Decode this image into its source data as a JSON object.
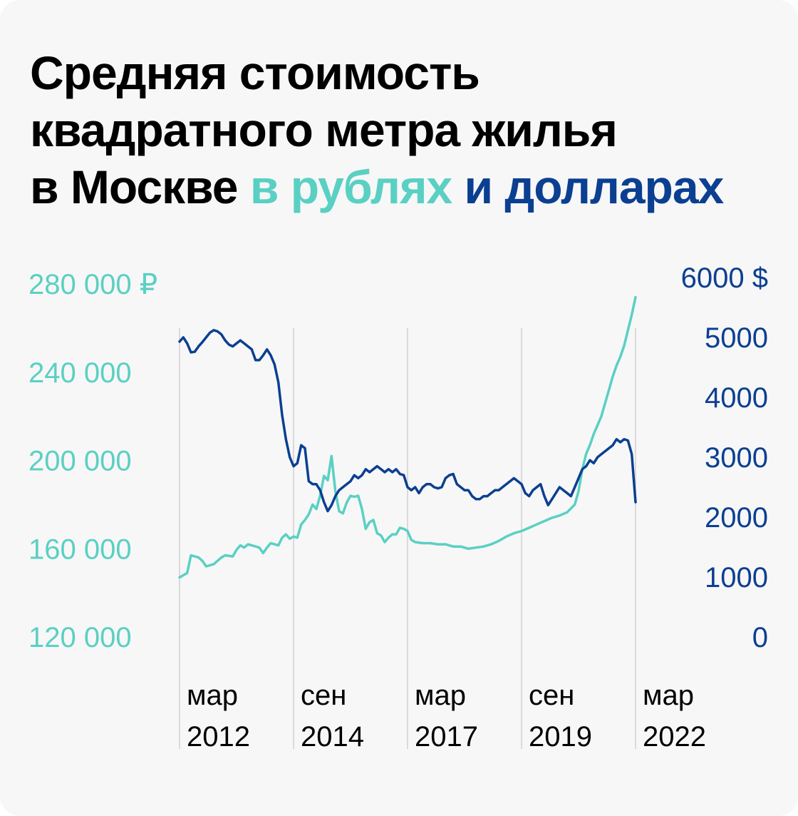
{
  "title": {
    "line1": "Средняя стоимость",
    "line2": "квадратного метра жилья",
    "line3_prefix": "в Москве",
    "rub_word": "в рублях",
    "usd_word": "и долларах"
  },
  "colors": {
    "rub": "#5ad0c3",
    "usd": "#0b3f91",
    "grid": "#d0d0d0",
    "background": "#f7f7f7"
  },
  "chart_data": {
    "type": "line",
    "x_range": [
      "2012-03",
      "2022-03"
    ],
    "x_ticks": [
      {
        "line1": "мар",
        "line2": "2012",
        "date": "2012-03"
      },
      {
        "line1": "сен",
        "line2": "2014",
        "date": "2014-09"
      },
      {
        "line1": "мар",
        "line2": "2017",
        "date": "2017-03"
      },
      {
        "line1": "сен",
        "line2": "2019",
        "date": "2019-09"
      },
      {
        "line1": "мар",
        "line2": "2022",
        "date": "2022-03"
      }
    ],
    "y_left": {
      "range": [
        120000,
        280000
      ],
      "ticks": [
        {
          "value": 280000,
          "label": "280 000 ₽"
        },
        {
          "value": 240000,
          "label": "240 000"
        },
        {
          "value": 200000,
          "label": "200 000"
        },
        {
          "value": 160000,
          "label": "160 000"
        },
        {
          "value": 120000,
          "label": "120 000"
        }
      ]
    },
    "y_right": {
      "range": [
        0,
        6000
      ],
      "ticks": [
        {
          "value": 6000,
          "label": "6000 $"
        },
        {
          "value": 5000,
          "label": "5000"
        },
        {
          "value": 4000,
          "label": "4000"
        },
        {
          "value": 3000,
          "label": "3000"
        },
        {
          "value": 2000,
          "label": "2000"
        },
        {
          "value": 1000,
          "label": "1000"
        },
        {
          "value": 0,
          "label": "0"
        }
      ]
    },
    "series": [
      {
        "axis": "left",
        "color": "#5ad0c3",
        "points": [
          [
            "2012-03",
            147000
          ],
          [
            "2012-05",
            149000
          ],
          [
            "2012-06",
            157000
          ],
          [
            "2012-08",
            156000
          ],
          [
            "2012-09",
            154500
          ],
          [
            "2012-10",
            152000
          ],
          [
            "2012-12",
            153000
          ],
          [
            "2013-02",
            156000
          ],
          [
            "2013-03",
            157000
          ],
          [
            "2013-05",
            156500
          ],
          [
            "2013-06",
            159500
          ],
          [
            "2013-07",
            161500
          ],
          [
            "2013-08",
            160500
          ],
          [
            "2013-09",
            162000
          ],
          [
            "2013-10",
            161500
          ],
          [
            "2013-12",
            160500
          ],
          [
            "2014-01",
            158000
          ],
          [
            "2014-02",
            160500
          ],
          [
            "2014-03",
            162500
          ],
          [
            "2014-05",
            161500
          ],
          [
            "2014-06",
            165000
          ],
          [
            "2014-07",
            166500
          ],
          [
            "2014-08",
            164500
          ],
          [
            "2014-09",
            165500
          ],
          [
            "2014-10",
            165000
          ],
          [
            "2014-11",
            171000
          ],
          [
            "2014-12",
            173000
          ],
          [
            "2015-01",
            175500
          ],
          [
            "2015-02",
            180000
          ],
          [
            "2015-03",
            178000
          ],
          [
            "2015-04",
            184000
          ],
          [
            "2015-05",
            193000
          ],
          [
            "2015-06",
            191000
          ],
          [
            "2015-07",
            202000
          ],
          [
            "2015-08",
            186000
          ],
          [
            "2015-09",
            177000
          ],
          [
            "2015-10",
            176000
          ],
          [
            "2015-11",
            181000
          ],
          [
            "2015-12",
            184000
          ],
          [
            "2016-01",
            183500
          ],
          [
            "2016-02",
            184000
          ],
          [
            "2016-03",
            178000
          ],
          [
            "2016-04",
            169000
          ],
          [
            "2016-05",
            172000
          ],
          [
            "2016-06",
            173000
          ],
          [
            "2016-07",
            167000
          ],
          [
            "2016-08",
            166000
          ],
          [
            "2016-09",
            163000
          ],
          [
            "2016-10",
            165000
          ],
          [
            "2016-11",
            166500
          ],
          [
            "2016-12",
            166500
          ],
          [
            "2017-01",
            169500
          ],
          [
            "2017-02",
            169000
          ],
          [
            "2017-03",
            168000
          ],
          [
            "2017-04",
            164000
          ],
          [
            "2017-05",
            163000
          ],
          [
            "2017-07",
            162500
          ],
          [
            "2017-09",
            162500
          ],
          [
            "2017-11",
            162000
          ],
          [
            "2018-01",
            162000
          ],
          [
            "2018-03",
            161000
          ],
          [
            "2018-05",
            161000
          ],
          [
            "2018-07",
            160000
          ],
          [
            "2018-09",
            160500
          ],
          [
            "2018-11",
            161000
          ],
          [
            "2019-01",
            162000
          ],
          [
            "2019-03",
            163500
          ],
          [
            "2019-05",
            165500
          ],
          [
            "2019-07",
            167000
          ],
          [
            "2019-09",
            168000
          ],
          [
            "2019-11",
            169500
          ],
          [
            "2020-01",
            171000
          ],
          [
            "2020-03",
            172500
          ],
          [
            "2020-05",
            174000
          ],
          [
            "2020-07",
            175000
          ],
          [
            "2020-09",
            176500
          ],
          [
            "2020-11",
            180000
          ],
          [
            "2020-12",
            186000
          ],
          [
            "2021-01",
            196000
          ],
          [
            "2021-02",
            203000
          ],
          [
            "2021-03",
            207000
          ],
          [
            "2021-04",
            212000
          ],
          [
            "2021-05",
            216000
          ],
          [
            "2021-06",
            220000
          ],
          [
            "2021-07",
            226000
          ],
          [
            "2021-08",
            232000
          ],
          [
            "2021-09",
            238000
          ],
          [
            "2021-10",
            243000
          ],
          [
            "2021-11",
            247000
          ],
          [
            "2021-12",
            252000
          ],
          [
            "2022-01",
            259000
          ],
          [
            "2022-02",
            266000
          ],
          [
            "2022-03",
            274000
          ]
        ]
      },
      {
        "axis": "right",
        "color": "#0b3f91",
        "points": [
          [
            "2012-03",
            4930
          ],
          [
            "2012-04",
            5000
          ],
          [
            "2012-05",
            4900
          ],
          [
            "2012-06",
            4750
          ],
          [
            "2012-07",
            4760
          ],
          [
            "2012-08",
            4850
          ],
          [
            "2012-09",
            4920
          ],
          [
            "2012-10",
            5000
          ],
          [
            "2012-11",
            5080
          ],
          [
            "2012-12",
            5120
          ],
          [
            "2013-01",
            5100
          ],
          [
            "2013-02",
            5050
          ],
          [
            "2013-03",
            4950
          ],
          [
            "2013-04",
            4880
          ],
          [
            "2013-05",
            4850
          ],
          [
            "2013-06",
            4900
          ],
          [
            "2013-07",
            4950
          ],
          [
            "2013-08",
            4900
          ],
          [
            "2013-09",
            4850
          ],
          [
            "2013-10",
            4800
          ],
          [
            "2013-11",
            4620
          ],
          [
            "2013-12",
            4620
          ],
          [
            "2014-01",
            4700
          ],
          [
            "2014-02",
            4800
          ],
          [
            "2014-03",
            4700
          ],
          [
            "2014-04",
            4550
          ],
          [
            "2014-05",
            4250
          ],
          [
            "2014-06",
            3700
          ],
          [
            "2014-07",
            3300
          ],
          [
            "2014-08",
            3000
          ],
          [
            "2014-09",
            2850
          ],
          [
            "2014-10",
            2900
          ],
          [
            "2014-11",
            3200
          ],
          [
            "2014-12",
            3150
          ],
          [
            "2015-01",
            2600
          ],
          [
            "2015-02",
            2550
          ],
          [
            "2015-03",
            2550
          ],
          [
            "2015-04",
            2450
          ],
          [
            "2015-05",
            2250
          ],
          [
            "2015-06",
            2100
          ],
          [
            "2015-07",
            2200
          ],
          [
            "2015-08",
            2350
          ],
          [
            "2015-09",
            2450
          ],
          [
            "2015-10",
            2500
          ],
          [
            "2015-11",
            2550
          ],
          [
            "2015-12",
            2600
          ],
          [
            "2016-01",
            2700
          ],
          [
            "2016-02",
            2650
          ],
          [
            "2016-03",
            2700
          ],
          [
            "2016-04",
            2800
          ],
          [
            "2016-05",
            2750
          ],
          [
            "2016-06",
            2800
          ],
          [
            "2016-07",
            2850
          ],
          [
            "2016-08",
            2800
          ],
          [
            "2016-09",
            2750
          ],
          [
            "2016-10",
            2800
          ],
          [
            "2016-11",
            2750
          ],
          [
            "2016-12",
            2800
          ],
          [
            "2017-01",
            2720
          ],
          [
            "2017-02",
            2700
          ],
          [
            "2017-03",
            2500
          ],
          [
            "2017-04",
            2450
          ],
          [
            "2017-05",
            2500
          ],
          [
            "2017-06",
            2400
          ],
          [
            "2017-07",
            2500
          ],
          [
            "2017-08",
            2550
          ],
          [
            "2017-09",
            2550
          ],
          [
            "2017-10",
            2500
          ],
          [
            "2017-11",
            2480
          ],
          [
            "2017-12",
            2500
          ],
          [
            "2018-01",
            2650
          ],
          [
            "2018-02",
            2700
          ],
          [
            "2018-03",
            2720
          ],
          [
            "2018-04",
            2550
          ],
          [
            "2018-05",
            2500
          ],
          [
            "2018-06",
            2450
          ],
          [
            "2018-07",
            2450
          ],
          [
            "2018-08",
            2350
          ],
          [
            "2018-09",
            2300
          ],
          [
            "2018-10",
            2300
          ],
          [
            "2018-11",
            2350
          ],
          [
            "2018-12",
            2350
          ],
          [
            "2019-01",
            2400
          ],
          [
            "2019-02",
            2450
          ],
          [
            "2019-03",
            2450
          ],
          [
            "2019-04",
            2500
          ],
          [
            "2019-05",
            2550
          ],
          [
            "2019-06",
            2600
          ],
          [
            "2019-07",
            2650
          ],
          [
            "2019-08",
            2600
          ],
          [
            "2019-09",
            2550
          ],
          [
            "2019-10",
            2400
          ],
          [
            "2019-11",
            2350
          ],
          [
            "2019-12",
            2450
          ],
          [
            "2020-01",
            2500
          ],
          [
            "2020-02",
            2550
          ],
          [
            "2020-03",
            2350
          ],
          [
            "2020-04",
            2200
          ],
          [
            "2020-05",
            2300
          ],
          [
            "2020-06",
            2400
          ],
          [
            "2020-07",
            2500
          ],
          [
            "2020-08",
            2450
          ],
          [
            "2020-09",
            2400
          ],
          [
            "2020-10",
            2350
          ],
          [
            "2020-11",
            2500
          ],
          [
            "2020-12",
            2650
          ],
          [
            "2021-01",
            2800
          ],
          [
            "2021-02",
            2850
          ],
          [
            "2021-03",
            2950
          ],
          [
            "2021-04",
            2900
          ],
          [
            "2021-05",
            3000
          ],
          [
            "2021-06",
            3050
          ],
          [
            "2021-07",
            3100
          ],
          [
            "2021-08",
            3150
          ],
          [
            "2021-09",
            3200
          ],
          [
            "2021-10",
            3300
          ],
          [
            "2021-11",
            3250
          ],
          [
            "2021-12",
            3300
          ],
          [
            "2022-01",
            3280
          ],
          [
            "2022-02",
            3050
          ],
          [
            "2022-03",
            2250
          ]
        ]
      }
    ]
  }
}
